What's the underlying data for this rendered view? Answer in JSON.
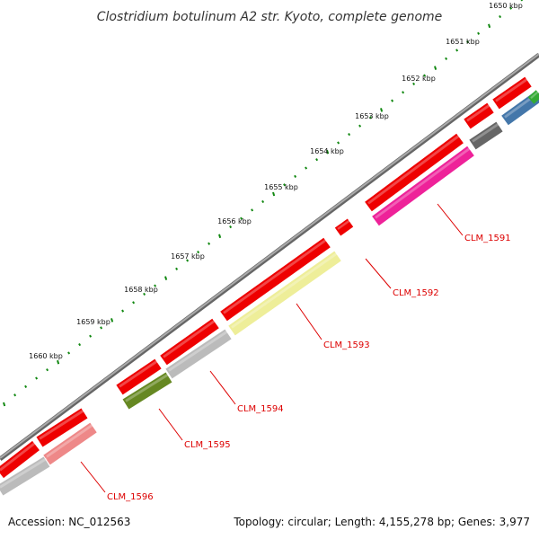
{
  "title": "Clostridium botulinum A2 str. Kyoto, complete genome",
  "scale_labels": [
    "1650 kbp",
    "1651 kbp",
    "1652 kbp",
    "1653 kbp",
    "1654 kbp",
    "1655 kbp",
    "1656 kbp",
    "1657 kbp",
    "1658 kbp",
    "1659 kbp",
    "1660 kbp"
  ],
  "gene_labels": [
    "CLM_1591",
    "CLM_1592",
    "CLM_1593",
    "CLM_1594",
    "CLM_1595",
    "CLM_1596"
  ],
  "footer": {
    "accession": "Accession: NC_012563",
    "stats": "Topology: circular; Length: 4,155,278 bp; Genes: 3,977"
  },
  "colors": {
    "backbone": "#888888",
    "forward_cds": "#ee0000",
    "tick": "#118811",
    "label_line": "#dd0000",
    "magenta": "#ee2299",
    "khaki": "#eeee99",
    "grey": "#bbbbbb",
    "olive": "#668822",
    "salmon": "#ee8888",
    "dark_grey": "#666666",
    "steel_blue": "#4477aa",
    "green": "#33aa33"
  }
}
